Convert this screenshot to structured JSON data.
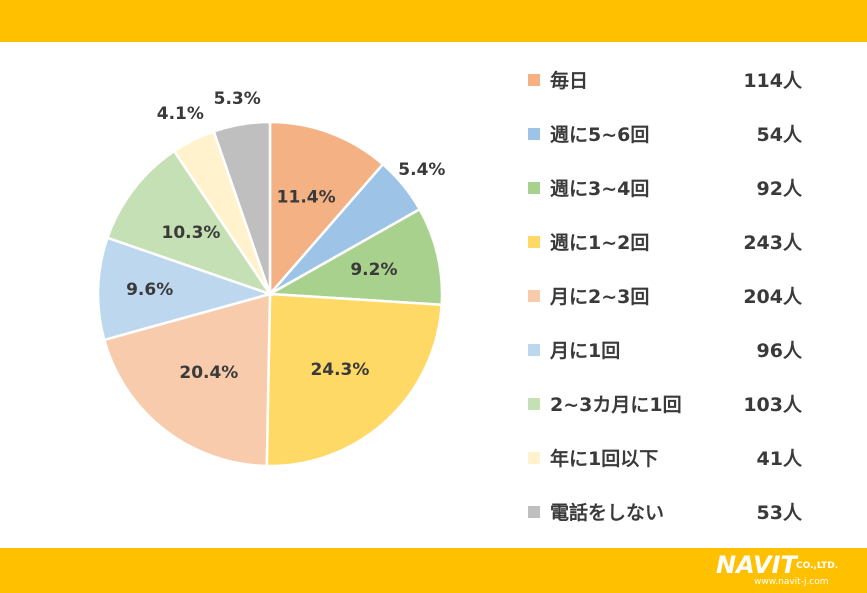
{
  "chart_data": {
    "type": "pie",
    "categories": [
      "毎日",
      "週に5~6回",
      "週に3~4回",
      "週に1~2回",
      "月に2~3回",
      "月に1回",
      "2~3カ月に1回",
      "年に1回以下",
      "電話をしない"
    ],
    "values": [
      11.4,
      5.4,
      9.2,
      24.3,
      20.4,
      9.6,
      10.3,
      4.1,
      5.3
    ],
    "value_labels": [
      "11.4%",
      "5.4%",
      "9.2%",
      "24.3%",
      "20.4%",
      "9.6%",
      "10.3%",
      "4.1%",
      "5.3%"
    ],
    "counts": [
      "114人",
      "54人",
      "92人",
      "243人",
      "204人",
      "96人",
      "103人",
      "41人",
      "53人"
    ],
    "colors": [
      "#F4B183",
      "#9DC3E6",
      "#A9D18E",
      "#FFD966",
      "#F8CBAD",
      "#BDD7EE",
      "#C5E0B4",
      "#FFF2CC",
      "#BFBFBF"
    ],
    "legend_position": "right",
    "title": ""
  },
  "branding": {
    "logo_text": "NAVIT",
    "logo_suffix": "CO.,LTD.",
    "logo_url": "www.navit-j.com",
    "band_color": "#FFC000"
  }
}
